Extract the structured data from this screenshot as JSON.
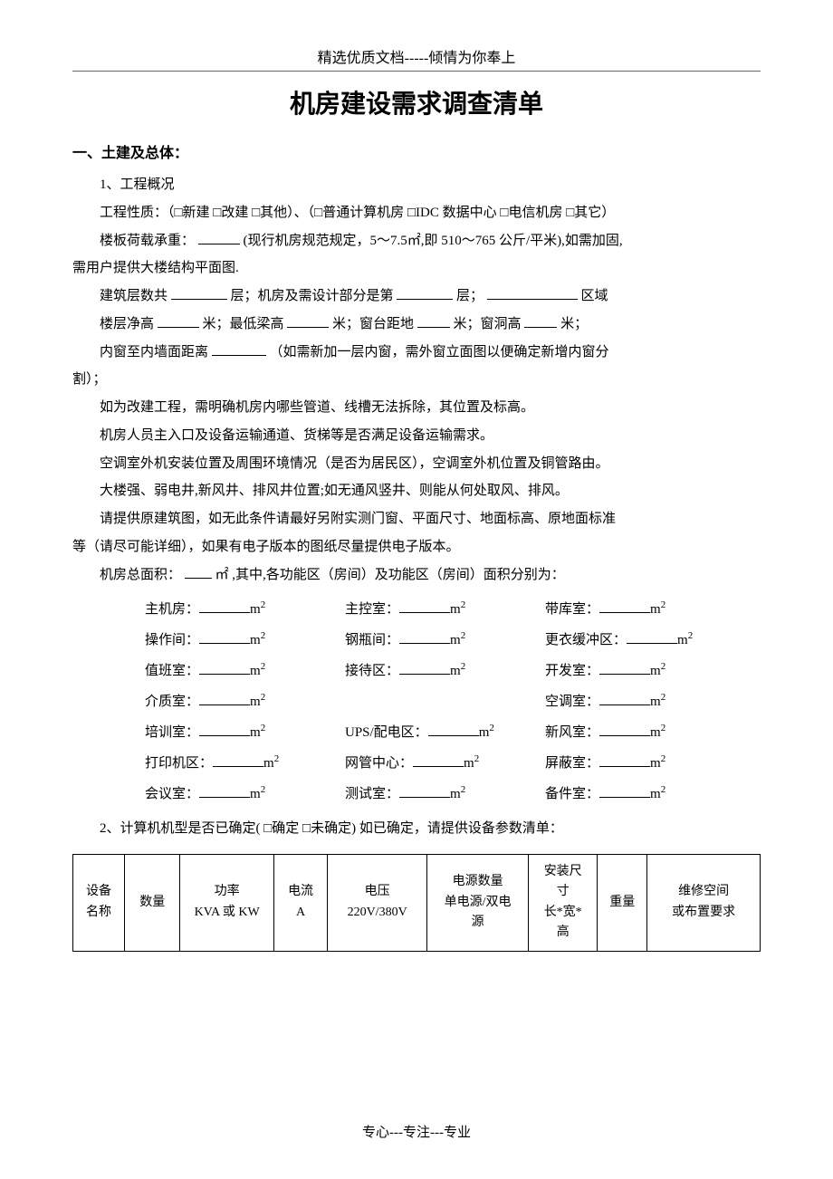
{
  "header": "精选优质文档-----倾情为你奉上",
  "title": "机房建设需求调查清单",
  "section1": {
    "heading": "一、土建及总体：",
    "p1": "1、工程概况",
    "p2": "工程性质：（□新建 □改建 □其他）、（□普通计算机房 □IDC 数据中心 □电信机房 □其它）",
    "p3a": "楼板荷载承重：",
    "p3b": "(现行机房规范规定，5～7.5㎡,即 510～765 公斤/平米),如需加固,",
    "p3c": "需用户提供大楼结构平面图.",
    "p4a": "建筑层数共",
    "p4b": "层；机房及需设计部分是第",
    "p4c": "层；",
    "p4d": "区域",
    "p5a": "楼层净高",
    "p5b": "米；最低梁高",
    "p5c": "米；窗台距地",
    "p5d": "米；窗洞高",
    "p5e": "米；",
    "p6a": "内窗至内墙面距离",
    "p6b": "（如需新加一层内窗，需外窗立面图以便确定新增内窗分",
    "p6c": "割）；",
    "p7": "如为改建工程，需明确机房内哪些管道、线槽无法拆除，其位置及标高。",
    "p8": "机房人员主入口及设备运输通道、货梯等是否满足设备运输需求。",
    "p9": "空调室外机安装位置及周围环境情况（是否为居民区），空调室外机位置及铜管路由。",
    "p10": "大楼强、弱电井,新风井、排风井位置;如无通风竖井、则能从何处取风、排风。",
    "p11a": "请提供原建筑图，如无此条件请最好另附实测门窗、平面尺寸、地面标高、原地面标准",
    "p11b": "等（请尽可能详细），如果有电子版本的图纸尽量提供电子版本。",
    "p12a": "机房总面积：",
    "p12b": "㎡ ,其中,各功能区（房间）及功能区（房间）面积分别为：",
    "rooms": [
      [
        {
          "label": "主机房：",
          "unit": "m",
          "has": true
        },
        {
          "label": "主控室：",
          "unit": "m",
          "has": true
        },
        {
          "label": "带库室：",
          "unit": "m",
          "has": true
        }
      ],
      [
        {
          "label": "操作间：",
          "unit": "m",
          "has": true
        },
        {
          "label": "钢瓶间：",
          "unit": "m",
          "has": true
        },
        {
          "label": "更衣缓冲区：",
          "unit": "m",
          "has": true
        }
      ],
      [
        {
          "label": "值班室：",
          "unit": "m",
          "has": true
        },
        {
          "label": "接待区：",
          "unit": "m",
          "has": true
        },
        {
          "label": "开发室：",
          "unit": "m",
          "has": true
        }
      ],
      [
        {
          "label": "介质室：",
          "unit": "m",
          "has": true
        },
        {
          "label": "",
          "unit": "",
          "has": false
        },
        {
          "label": "空调室：",
          "unit": "m",
          "has": true
        }
      ],
      [
        {
          "label": "培训室：",
          "unit": "m",
          "has": true
        },
        {
          "label": "UPS/配电区：",
          "unit": "m",
          "has": true
        },
        {
          "label": "新风室：",
          "unit": "m",
          "has": true
        }
      ],
      [
        {
          "label": "打印机区：",
          "unit": "m",
          "has": true
        },
        {
          "label": "网管中心：",
          "unit": "m",
          "has": true
        },
        {
          "label": "屏蔽室：",
          "unit": "m",
          "has": true
        }
      ],
      [
        {
          "label": "会议室：",
          "unit": "m",
          "has": true
        },
        {
          "label": "测试室：",
          "unit": "m",
          "has": true
        },
        {
          "label": "备件室：",
          "unit": "m",
          "has": true
        }
      ]
    ],
    "p13": "2、计算机机型是否已确定( □确定  □未确定) 如已确定，请提供设备参数清单："
  },
  "table": {
    "columns": [
      {
        "l1": "设备",
        "l2": "名称"
      },
      {
        "l1": "数量",
        "l2": ""
      },
      {
        "l1": "功率",
        "l2": "KVA 或 KW"
      },
      {
        "l1": "电流",
        "l2": "A"
      },
      {
        "l1": "电压",
        "l2": "220V/380V"
      },
      {
        "l1": "电源数量",
        "l2": "单电源/双电",
        "l3": "源"
      },
      {
        "l1": "安装尺",
        "l2": "寸",
        "l3": "长*宽*",
        "l4": "高"
      },
      {
        "l1": "重量",
        "l2": ""
      },
      {
        "l1": "维修空间",
        "l2": "或布置要求"
      }
    ],
    "col_widths": [
      "54",
      "58",
      "98",
      "56",
      "104",
      "106",
      "72",
      "52",
      "118"
    ]
  },
  "footer": "专心---专注---专业",
  "colors": {
    "text": "#000000",
    "background": "#ffffff",
    "rule": "#666666"
  }
}
